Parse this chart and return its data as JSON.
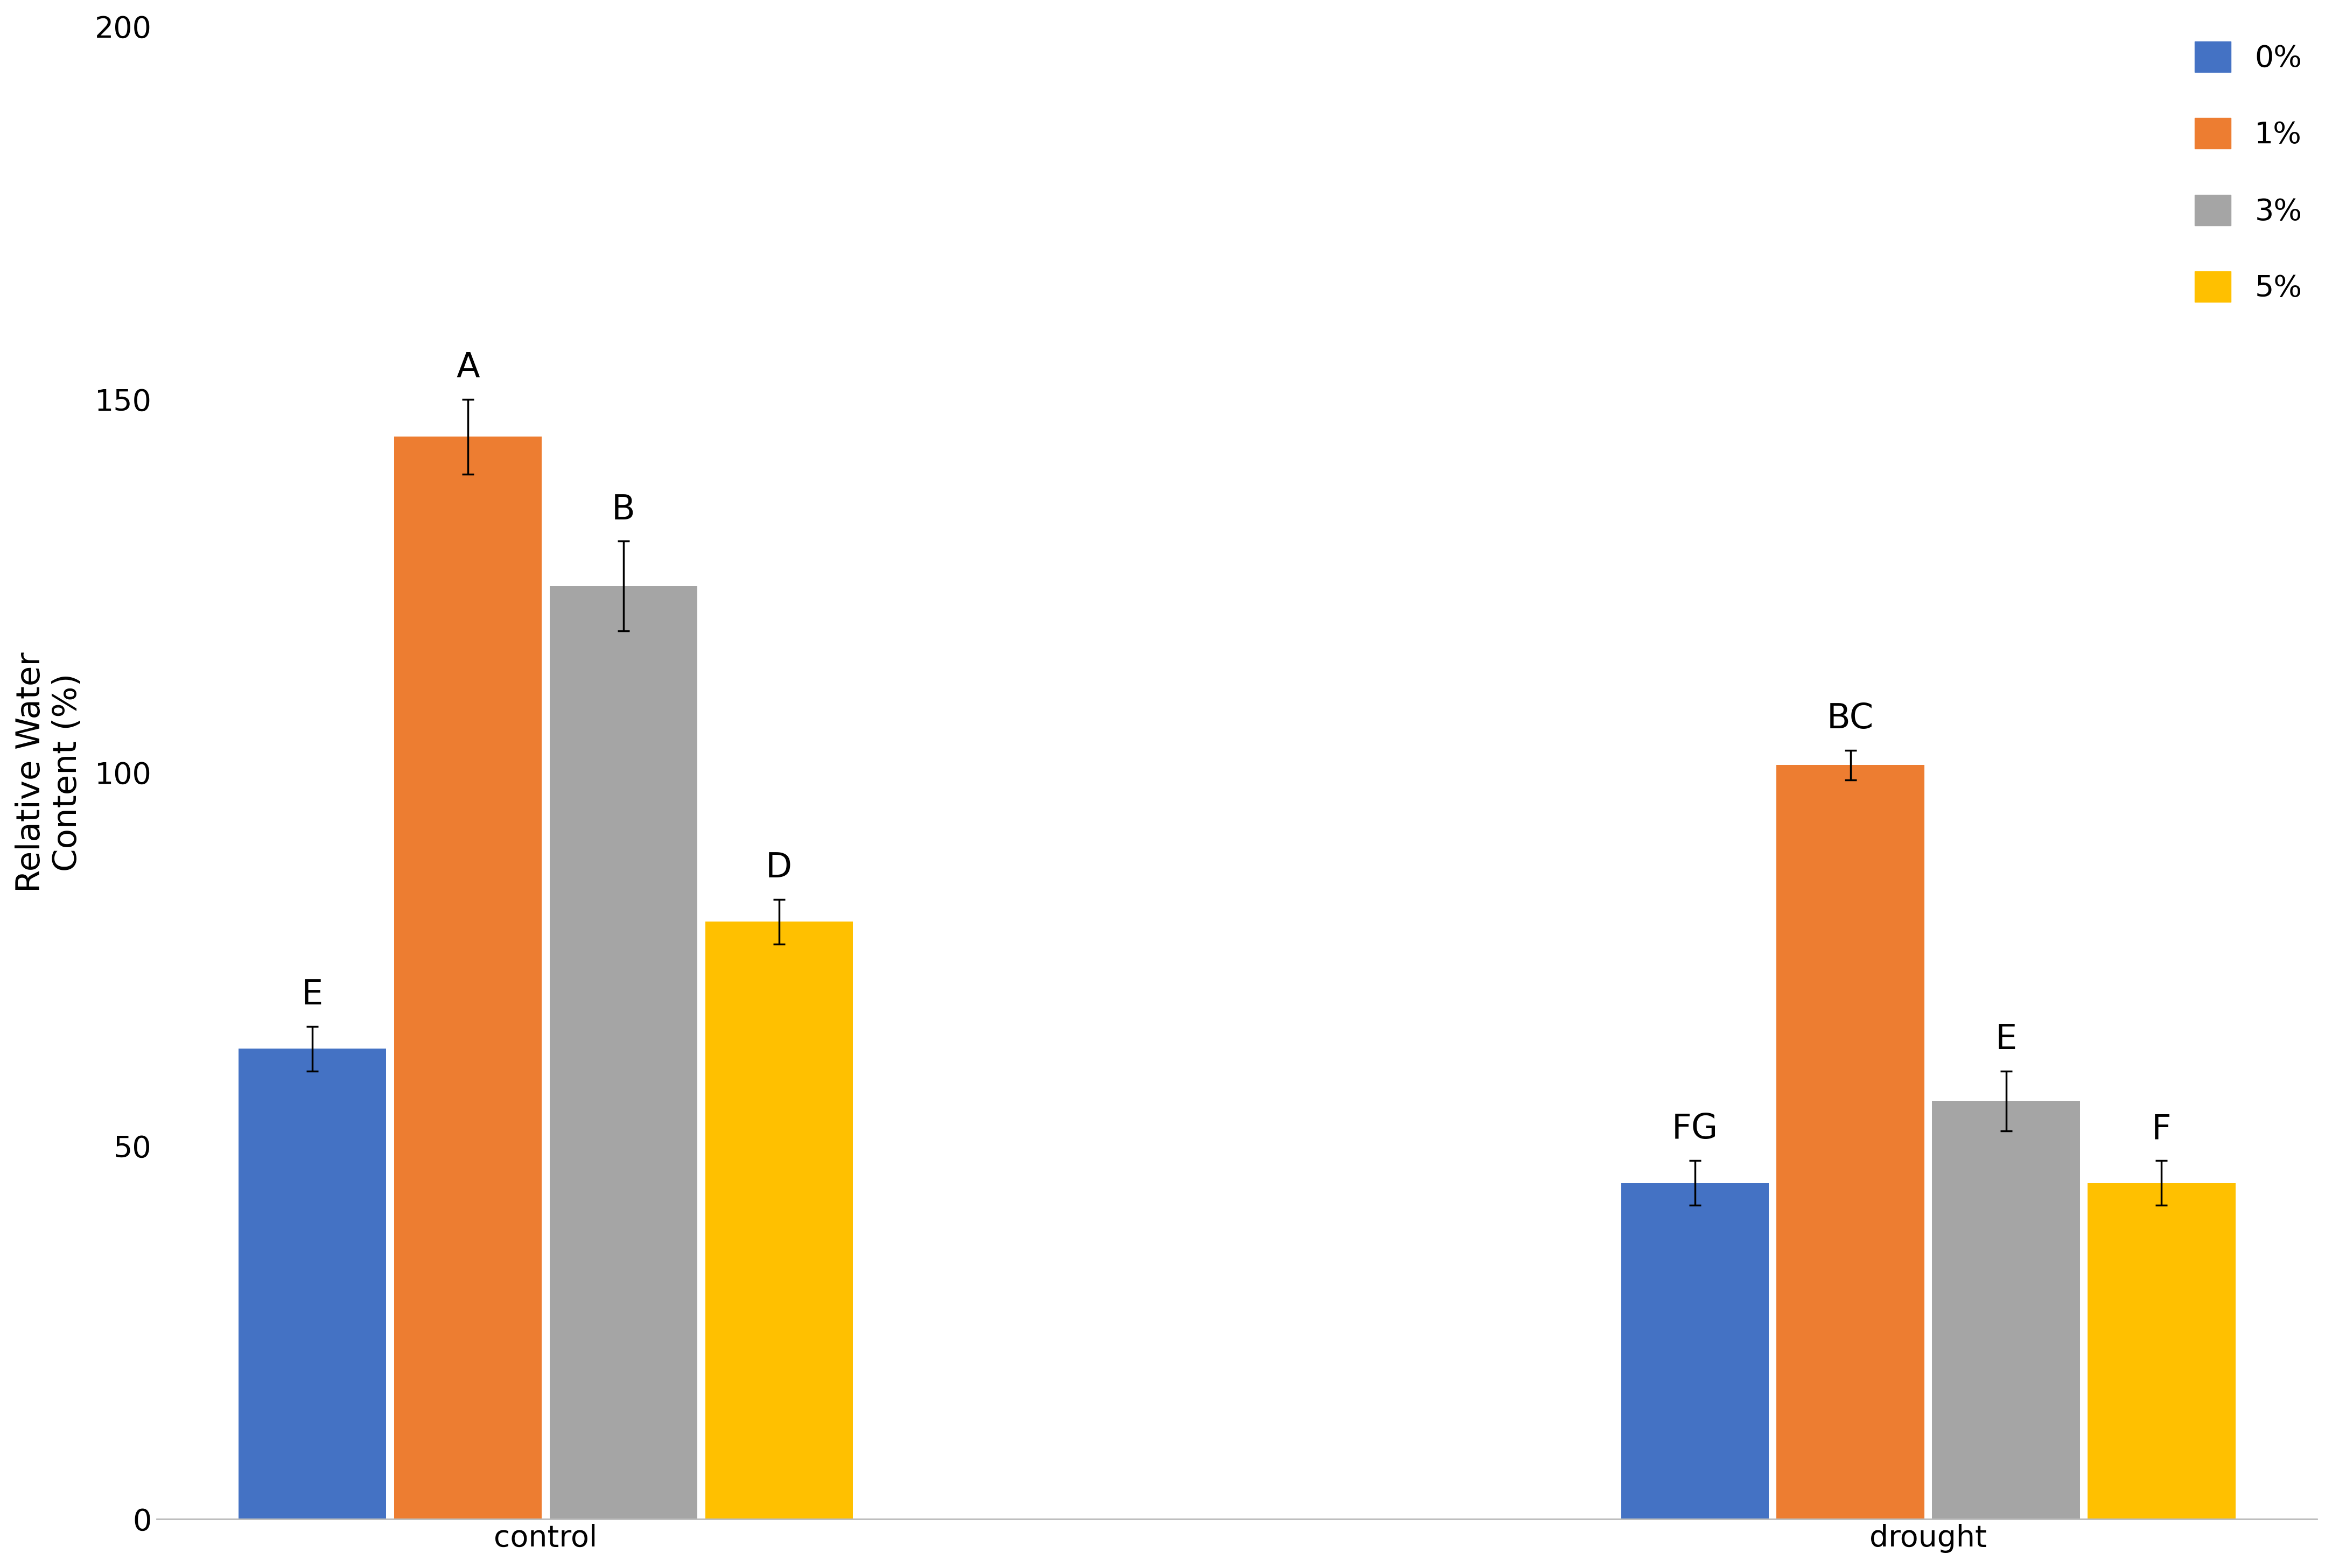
{
  "groups": [
    "control",
    "drought"
  ],
  "categories": [
    "0%",
    "1%",
    "3%",
    "5%"
  ],
  "bar_colors": [
    "#4472C4",
    "#ED7D31",
    "#A5A5A5",
    "#FFC000"
  ],
  "values": {
    "control": [
      63,
      145,
      125,
      80
    ],
    "drought": [
      45,
      101,
      56,
      45
    ]
  },
  "errors": {
    "control": [
      3,
      5,
      6,
      3
    ],
    "drought": [
      3,
      2,
      4,
      3
    ]
  },
  "labels": {
    "control": [
      "E",
      "A",
      "B",
      "D"
    ],
    "drought": [
      "FG",
      "BC",
      "E",
      "F"
    ]
  },
  "ylabel": "Relative Water\nContent (%)",
  "ylim": [
    0,
    200
  ],
  "yticks": [
    0,
    50,
    100,
    150,
    200
  ],
  "background_color": "#FFFFFF",
  "bar_width": 0.18,
  "group_centers": [
    1.0,
    2.6
  ],
  "label_fontsize": 42,
  "tick_fontsize": 40,
  "ylabel_fontsize": 44,
  "legend_fontsize": 40,
  "annotation_fontsize": 46
}
